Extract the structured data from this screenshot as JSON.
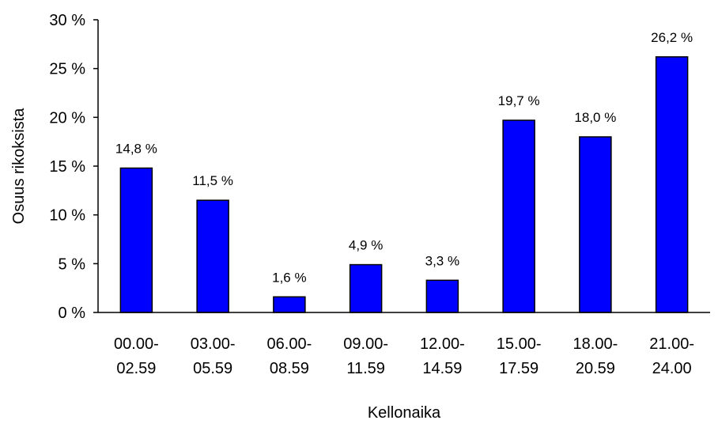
{
  "chart_data": {
    "type": "bar",
    "categories": [
      [
        "00.00-",
        "02.59"
      ],
      [
        "03.00-",
        "05.59"
      ],
      [
        "06.00-",
        "08.59"
      ],
      [
        "09.00-",
        "11.59"
      ],
      [
        "12.00-",
        "14.59"
      ],
      [
        "15.00-",
        "17.59"
      ],
      [
        "18.00-",
        "20.59"
      ],
      [
        "21.00-",
        "24.00"
      ]
    ],
    "values": [
      14.8,
      11.5,
      1.6,
      4.9,
      3.3,
      19.7,
      18.0,
      26.2
    ],
    "value_labels": [
      "14,8 %",
      "11,5 %",
      "1,6 %",
      "4,9 %",
      "3,3 %",
      "19,7 %",
      "18,0 %",
      "26,2 %"
    ],
    "y_ticks": [
      0,
      5,
      10,
      15,
      20,
      25,
      30
    ],
    "y_tick_labels": [
      "0 %",
      "5 %",
      "10 %",
      "15 %",
      "20 %",
      "25 %",
      "30 %"
    ],
    "ylim": [
      0,
      30
    ],
    "xlabel": "Kellonaika",
    "ylabel": "Osuus rikoksista",
    "grid": false,
    "bar_color": "#0000ff"
  }
}
